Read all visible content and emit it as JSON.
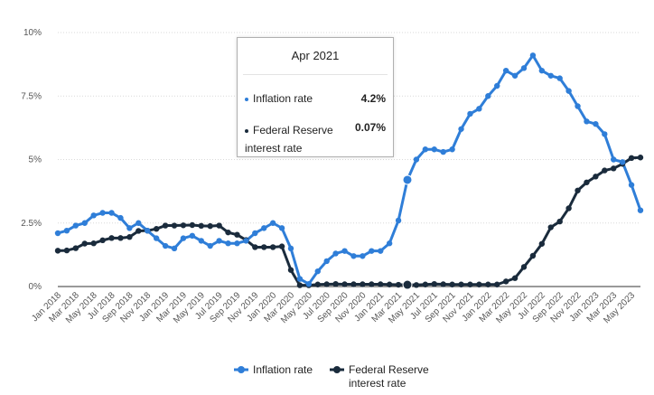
{
  "chart_data": {
    "type": "line",
    "title": "",
    "xlabel": "",
    "ylabel": "",
    "ylim": [
      0,
      10
    ],
    "yticks": [
      "0%",
      "2.5%",
      "5%",
      "7.5%",
      "10%"
    ],
    "x_tick_labels": [
      "Jan 2018",
      "Mar 2018",
      "May 2018",
      "Jul 2018",
      "Sep 2018",
      "Nov 2018",
      "Jan 2019",
      "Mar 2019",
      "May 2019",
      "Jul 2019",
      "Sep 2019",
      "Nov 2019",
      "Jan 2020",
      "Mar 2020",
      "May 2020",
      "Jul 2020",
      "Sep 2020",
      "Nov 2020",
      "Jan 2021",
      "Mar 2021",
      "May 2021",
      "Jul 2021",
      "Sep 2021",
      "Nov 2021",
      "Jan 2022",
      "Mar 2022",
      "May 2022",
      "Jul 2022",
      "Sep 2022",
      "Nov 2022",
      "Jan 2023",
      "Mar 2023",
      "May 2023"
    ],
    "x_start": "Jan 2018",
    "x_end": "Jun 2023",
    "grid": true,
    "legend_position": "bottom",
    "series": [
      {
        "name": "Inflation rate",
        "color": "#2f7ed8",
        "values": [
          2.1,
          2.2,
          2.4,
          2.5,
          2.8,
          2.9,
          2.9,
          2.7,
          2.3,
          2.5,
          2.2,
          1.9,
          1.6,
          1.5,
          1.9,
          2.0,
          1.8,
          1.6,
          1.8,
          1.7,
          1.7,
          1.8,
          2.1,
          2.3,
          2.5,
          2.3,
          1.5,
          0.3,
          0.1,
          0.6,
          1.0,
          1.3,
          1.4,
          1.2,
          1.2,
          1.4,
          1.4,
          1.7,
          2.6,
          4.2,
          5.0,
          5.4,
          5.4,
          5.3,
          5.4,
          6.2,
          6.8,
          7.0,
          7.5,
          7.9,
          8.5,
          8.3,
          8.6,
          9.1,
          8.5,
          8.3,
          8.2,
          7.7,
          7.1,
          6.5,
          6.4,
          6.0,
          5.0,
          4.9,
          4.0,
          3.0
        ]
      },
      {
        "name": "Federal Reserve interest rate",
        "color": "#1a2b3c",
        "values": [
          1.41,
          1.42,
          1.51,
          1.69,
          1.7,
          1.82,
          1.91,
          1.91,
          1.95,
          2.19,
          2.2,
          2.27,
          2.4,
          2.4,
          2.41,
          2.42,
          2.39,
          2.38,
          2.4,
          2.13,
          2.04,
          1.83,
          1.55,
          1.55,
          1.55,
          1.58,
          0.65,
          0.05,
          0.05,
          0.08,
          0.09,
          0.1,
          0.09,
          0.09,
          0.09,
          0.09,
          0.09,
          0.08,
          0.07,
          0.07,
          0.06,
          0.08,
          0.1,
          0.09,
          0.08,
          0.08,
          0.08,
          0.08,
          0.08,
          0.08,
          0.2,
          0.33,
          0.77,
          1.21,
          1.68,
          2.33,
          2.56,
          3.08,
          3.78,
          4.1,
          4.33,
          4.57,
          4.65,
          4.83,
          5.06,
          5.08
        ]
      }
    ],
    "tooltip": {
      "title": "Apr 2021",
      "rows": [
        {
          "label": "Inflation rate",
          "value": "4.2%"
        },
        {
          "label": "Federal Reserve interest rate",
          "value": "0.07%"
        }
      ]
    }
  }
}
